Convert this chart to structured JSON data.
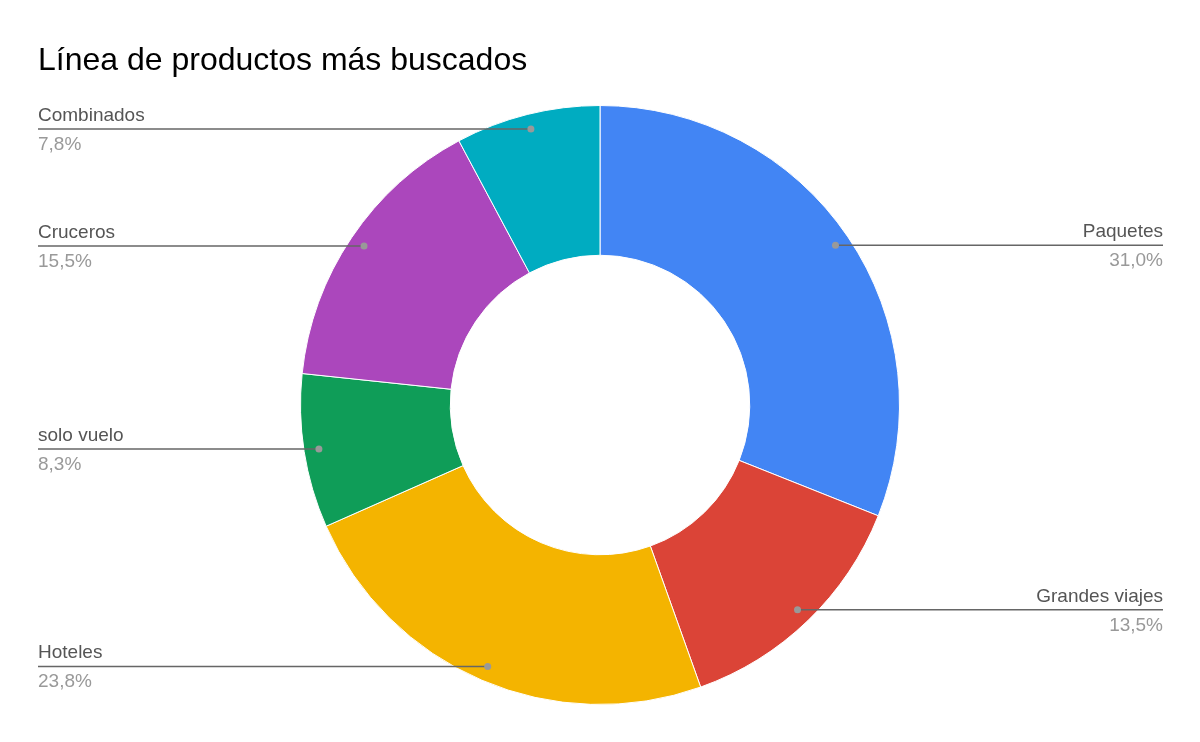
{
  "chart_data": {
    "type": "donut",
    "title": "Línea de productos más buscados",
    "categories": [
      "Paquetes",
      "Grandes viajes",
      "Hoteles",
      "solo vuelo",
      "Cruceros",
      "Combinados"
    ],
    "values": [
      31.0,
      13.5,
      23.8,
      8.3,
      15.5,
      7.8
    ],
    "value_labels": [
      "31,0%",
      "13,5%",
      "23,8%",
      "8,3%",
      "15,5%",
      "7,8%"
    ],
    "colors": [
      "#4285f4",
      "#db4437",
      "#f4b400",
      "#0f9d58",
      "#ab47bc",
      "#00acc1"
    ]
  }
}
